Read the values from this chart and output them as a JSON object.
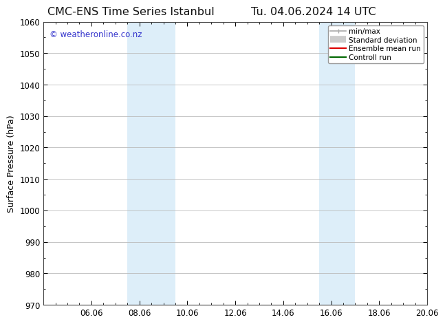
{
  "title_left": "CMC-ENS Time Series Istanbul",
  "title_right": "Tu. 04.06.2024 14 UTC",
  "ylabel": "Surface Pressure (hPa)",
  "ylim": [
    970,
    1060
  ],
  "yticks": [
    970,
    980,
    990,
    1000,
    1010,
    1020,
    1030,
    1040,
    1050,
    1060
  ],
  "xtick_labels": [
    "06.06",
    "08.06",
    "10.06",
    "12.06",
    "14.06",
    "16.06",
    "18.06",
    "20.06"
  ],
  "xtick_positions": [
    2,
    4,
    6,
    8,
    10,
    12,
    14,
    16
  ],
  "xlim": [
    0,
    16
  ],
  "shaded_bands": [
    {
      "x_start": 3.5,
      "x_end": 5.5,
      "color": "#ddeef9"
    },
    {
      "x_start": 11.5,
      "x_end": 13.0,
      "color": "#ddeef9"
    }
  ],
  "watermark_text": "© weatheronline.co.nz",
  "watermark_color": "#3333cc",
  "watermark_fontsize": 8.5,
  "legend_items": [
    {
      "label": "min/max",
      "color": "#aaaaaa",
      "lw": 1.2
    },
    {
      "label": "Standard deviation",
      "color": "#cccccc",
      "lw": 7
    },
    {
      "label": "Ensemble mean run",
      "color": "#dd0000",
      "lw": 1.5
    },
    {
      "label": "Controll run",
      "color": "#006600",
      "lw": 1.5
    }
  ],
  "bg_color": "#ffffff",
  "plot_bg_color": "#ffffff",
  "grid_color": "#bbbbbb",
  "title_fontsize": 11.5,
  "axis_label_fontsize": 9,
  "tick_fontsize": 8.5
}
